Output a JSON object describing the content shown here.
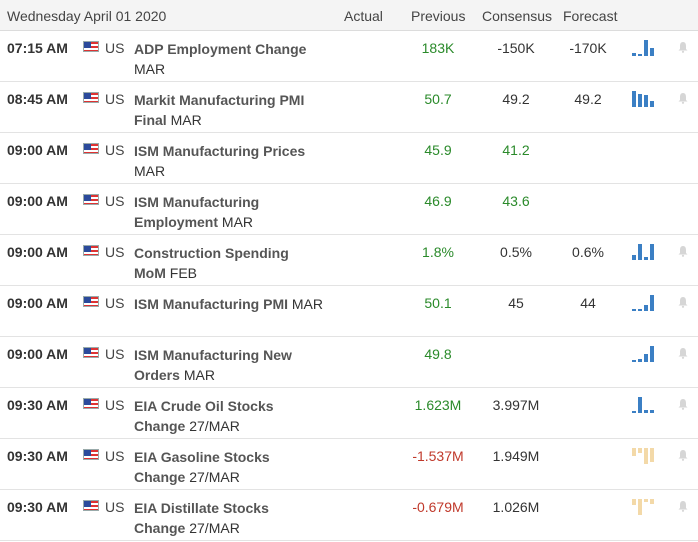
{
  "header": {
    "date": "Wednesday April 01 2020",
    "col_actual": "Actual",
    "col_previous": "Previous",
    "col_consensus": "Consensus",
    "col_forecast": "Forecast"
  },
  "rows": [
    {
      "time": "07:15 AM",
      "country": "US",
      "event": "ADP Employment Change",
      "period": "MAR",
      "actual": "",
      "previous": "183K",
      "previous_color": "pos",
      "consensus": "-150K",
      "forecast": "-170K",
      "chart": "up",
      "bars": [
        0.2,
        0.1,
        1,
        0.5
      ],
      "bell": true
    },
    {
      "time": "08:45 AM",
      "country": "US",
      "event": "Markit Manufacturing PMI Final",
      "period": "MAR",
      "actual": "",
      "previous": "50.7",
      "previous_color": "pos",
      "consensus": "49.2",
      "forecast": "49.2",
      "chart": "up",
      "bars": [
        1,
        0.8,
        0.75,
        0.4
      ],
      "bell": true
    },
    {
      "time": "09:00 AM",
      "country": "US",
      "event": "ISM Manufacturing Prices",
      "period": "MAR",
      "actual": "",
      "previous": "45.9",
      "previous_color": "pos",
      "consensus": "41.2",
      "consensus_color": "pos",
      "forecast": "",
      "chart": "",
      "bars": [],
      "bell": false
    },
    {
      "time": "09:00 AM",
      "country": "US",
      "event": "ISM Manufacturing Employment",
      "period": "MAR",
      "actual": "",
      "previous": "46.9",
      "previous_color": "pos",
      "consensus": "43.6",
      "consensus_color": "pos",
      "forecast": "",
      "chart": "",
      "bars": [],
      "bell": false
    },
    {
      "time": "09:00 AM",
      "country": "US",
      "event": "Construction Spending MoM",
      "period": "FEB",
      "actual": "",
      "previous": "1.8%",
      "previous_color": "pos",
      "consensus": "0.5%",
      "forecast": "0.6%",
      "chart": "up",
      "bars": [
        0.3,
        1,
        0.2,
        1
      ],
      "bell": true
    },
    {
      "time": "09:00 AM",
      "country": "US",
      "event": "ISM Manufacturing PMI",
      "period": "MAR",
      "actual": "",
      "previous": "50.1",
      "previous_color": "pos",
      "consensus": "45",
      "forecast": "44",
      "chart": "up",
      "bars": [
        0.15,
        0.1,
        0.4,
        1
      ],
      "bell": true
    },
    {
      "time": "09:00 AM",
      "country": "US",
      "event": "ISM Manufacturing New Orders",
      "period": "MAR",
      "actual": "",
      "previous": "49.8",
      "previous_color": "pos",
      "consensus": "",
      "forecast": "",
      "chart": "up",
      "bars": [
        0.1,
        0.2,
        0.5,
        1
      ],
      "bell": true
    },
    {
      "time": "09:30 AM",
      "country": "US",
      "event": "EIA Crude Oil Stocks Change",
      "period": "27/MAR",
      "actual": "",
      "previous": "1.623M",
      "previous_color": "pos",
      "consensus": "3.997M",
      "forecast": "",
      "chart": "up",
      "bars": [
        0.1,
        1,
        0.2,
        0.2
      ],
      "bell": true
    },
    {
      "time": "09:30 AM",
      "country": "US",
      "event": "EIA Gasoline Stocks Change",
      "period": "27/MAR",
      "actual": "",
      "previous": "-1.537M",
      "previous_color": "neg",
      "consensus": "1.949M",
      "forecast": "",
      "chart": "dn",
      "bars": [
        0.5,
        0.3,
        1,
        0.9
      ],
      "bell": true
    },
    {
      "time": "09:30 AM",
      "country": "US",
      "event": "EIA Distillate Stocks Change",
      "period": "27/MAR",
      "actual": "",
      "previous": "-0.679M",
      "previous_color": "neg",
      "consensus": "1.026M",
      "forecast": "",
      "chart": "dn",
      "bars": [
        0.4,
        1,
        0.2,
        0.3
      ],
      "bell": true
    }
  ]
}
